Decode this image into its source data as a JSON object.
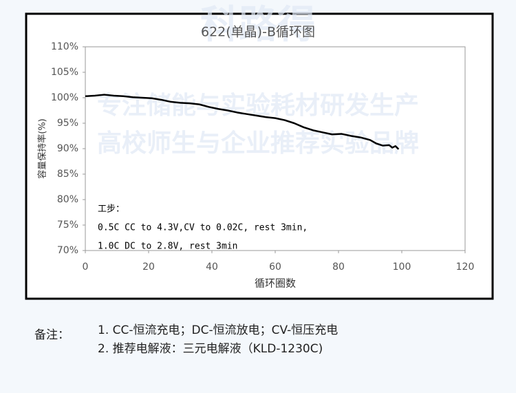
{
  "watermark": [
    "科路得",
    "专注储能与实验耗材研发生产",
    "高校师生与企业推荐实验品牌"
  ],
  "notes": {
    "label": "备注：",
    "items": [
      "1. CC-恒流充电；DC-恒流放电；CV-恒压充电",
      "2. 推荐电解液：三元电解液（KLD-1230C)"
    ]
  },
  "chart_data": {
    "type": "line",
    "title": "622(单晶)-B循环图",
    "x_label": "循环圈数",
    "y_label": "容量保持率(%)",
    "annotations": [
      "工步：",
      "0.5C CC to 4.3V,CV to 0.02C, rest 3min,",
      "1.0C DC to 2.8V, rest 3min"
    ],
    "x": [
      0,
      3,
      6,
      9,
      12,
      15,
      18,
      21,
      24,
      27,
      30,
      33,
      36,
      39,
      42,
      45,
      48,
      51,
      54,
      57,
      60,
      63,
      66,
      69,
      72,
      75,
      78,
      81,
      84,
      87,
      90,
      92,
      94,
      96,
      97,
      98,
      99
    ],
    "series": [
      {
        "color": "#000000",
        "values": [
          100.3,
          100.4,
          100.6,
          100.4,
          100.3,
          100.1,
          100.0,
          99.9,
          99.6,
          99.2,
          99.0,
          98.9,
          98.7,
          98.2,
          97.8,
          97.5,
          97.1,
          96.8,
          96.5,
          96.2,
          96.0,
          95.6,
          95.0,
          94.2,
          93.6,
          93.2,
          92.8,
          92.9,
          92.5,
          92.2,
          91.7,
          91.0,
          90.6,
          90.7,
          90.2,
          90.5,
          89.9
        ]
      }
    ],
    "xlim": [
      0,
      120
    ],
    "xticks": [
      0,
      20,
      40,
      60,
      80,
      100,
      120
    ],
    "ylim": [
      70,
      110
    ],
    "yticks": [
      {
        "value": 70,
        "label": "70%"
      },
      {
        "value": 75,
        "label": "75%"
      },
      {
        "value": 80,
        "label": "80%"
      },
      {
        "value": 85,
        "label": "85%"
      },
      {
        "value": 90,
        "label": "90%"
      },
      {
        "value": 95,
        "label": "95%"
      },
      {
        "value": 100,
        "label": "100%"
      },
      {
        "value": 105,
        "label": "105%"
      },
      {
        "value": 110,
        "label": "110%"
      }
    ],
    "grid": false
  }
}
